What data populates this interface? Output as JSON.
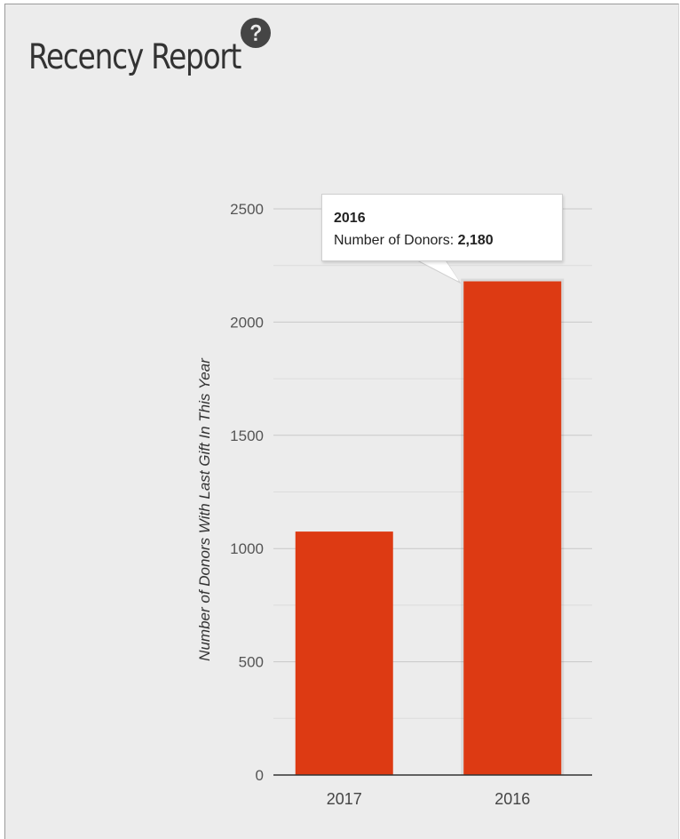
{
  "header": {
    "title": "Recency Report",
    "help_icon": "question-circle-icon"
  },
  "colors": {
    "bar": "#dd3a13",
    "axis": "#333333",
    "grid": "#c8c8c8",
    "text": "#555555",
    "background": "#ececec"
  },
  "tooltip": {
    "title": "2016",
    "label": "Number of Donors:",
    "value": "2,180"
  },
  "chart_data": {
    "type": "bar",
    "title": "",
    "xlabel": "",
    "ylabel": "Number of Donors With Last Gift In This Year",
    "categories": [
      "2017",
      "2016"
    ],
    "series": [
      {
        "values": [
          1075,
          2180
        ]
      }
    ],
    "ylim": [
      0,
      2500
    ],
    "yticks": [
      0,
      500,
      1000,
      1500,
      2000,
      2500
    ],
    "ytick_labels": [
      "0",
      "500",
      "1000",
      "1500",
      "2000",
      "2500"
    ],
    "grid": true,
    "minor_grid": true,
    "legend": "none",
    "highlighted_category": "2016"
  }
}
